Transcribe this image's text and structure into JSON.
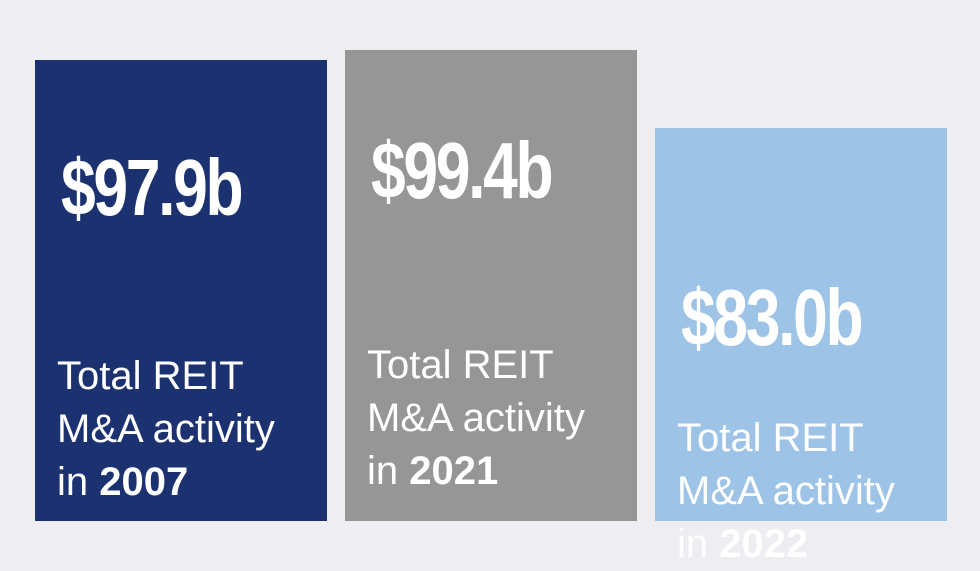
{
  "chart_data": {
    "type": "bar",
    "categories": [
      "2007",
      "2021",
      "2022"
    ],
    "values": [
      97.9,
      99.4,
      83.0
    ],
    "value_labels": [
      "$97.9b",
      "$99.4b",
      "$83.0b"
    ],
    "bar_text": {
      "line1": "Total REIT",
      "line2": "M&A activity",
      "line3_prefix": "in "
    },
    "colors": [
      "#1c3170",
      "#969696",
      "#9dc3e6"
    ],
    "background": "#ededf2",
    "title": "",
    "xlabel": "",
    "ylabel": ""
  }
}
